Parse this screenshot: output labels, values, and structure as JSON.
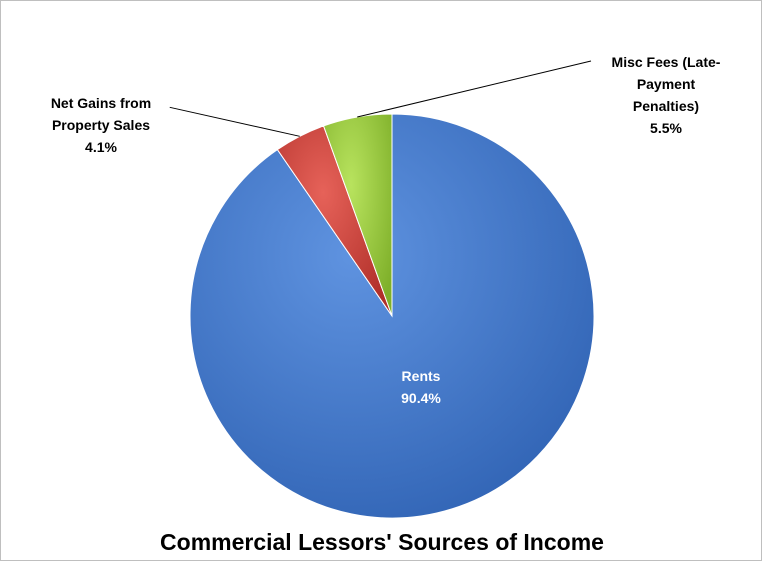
{
  "chart_data": {
    "type": "pie",
    "title": "Commercial Lessors' Sources of Income",
    "slices": [
      {
        "name": "Rents",
        "value": 90.4,
        "label_lines": [
          "Rents",
          "90.4%"
        ],
        "color": "#4177c9"
      },
      {
        "name": "Net Gains from Property Sales",
        "value": 4.1,
        "label_lines": [
          "Net Gains from",
          "Property Sales",
          "4.1%"
        ],
        "color": "#d9443c"
      },
      {
        "name": "Misc Fees (Late-Payment Penalties)",
        "value": 5.5,
        "label_lines": [
          "Misc Fees (Late-",
          "Payment",
          "Penalties)",
          "5.5%"
        ],
        "color": "#9fcf3f"
      }
    ],
    "start_angle_deg": 0,
    "direction": "clockwise",
    "legend": "none"
  }
}
